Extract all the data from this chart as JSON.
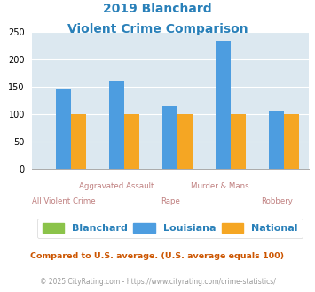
{
  "title_line1": "2019 Blanchard",
  "title_line2": "Violent Crime Comparison",
  "categories": [
    "All Violent Crime",
    "Aggravated Assault",
    "Rape",
    "Murder & Mans...",
    "Robbery"
  ],
  "blanchard": [
    0,
    0,
    0,
    0,
    0
  ],
  "louisiana": [
    145,
    160,
    115,
    235,
    107
  ],
  "national": [
    100,
    100,
    100,
    100,
    100
  ],
  "color_blanchard": "#8bc34a",
  "color_louisiana": "#4d9de0",
  "color_national": "#f5a623",
  "ylim": [
    0,
    250
  ],
  "yticks": [
    0,
    50,
    100,
    150,
    200,
    250
  ],
  "bg_color": "#dce8f0",
  "title_color": "#2980b9",
  "xlabel_color": "#c08080",
  "footnote1": "Compared to U.S. average. (U.S. average equals 100)",
  "footnote2": "© 2025 CityRating.com - https://www.cityrating.com/crime-statistics/",
  "footnote1_color": "#cc5500",
  "footnote2_color": "#999999",
  "legend_labels": [
    "Blanchard",
    "Louisiana",
    "National"
  ],
  "bar_width": 0.28,
  "top_x_labels": {
    "1": "Aggravated Assault",
    "3": "Murder & Mans..."
  },
  "bot_x_labels": {
    "0": "All Violent Crime",
    "2": "Rape",
    "4": "Robbery"
  }
}
